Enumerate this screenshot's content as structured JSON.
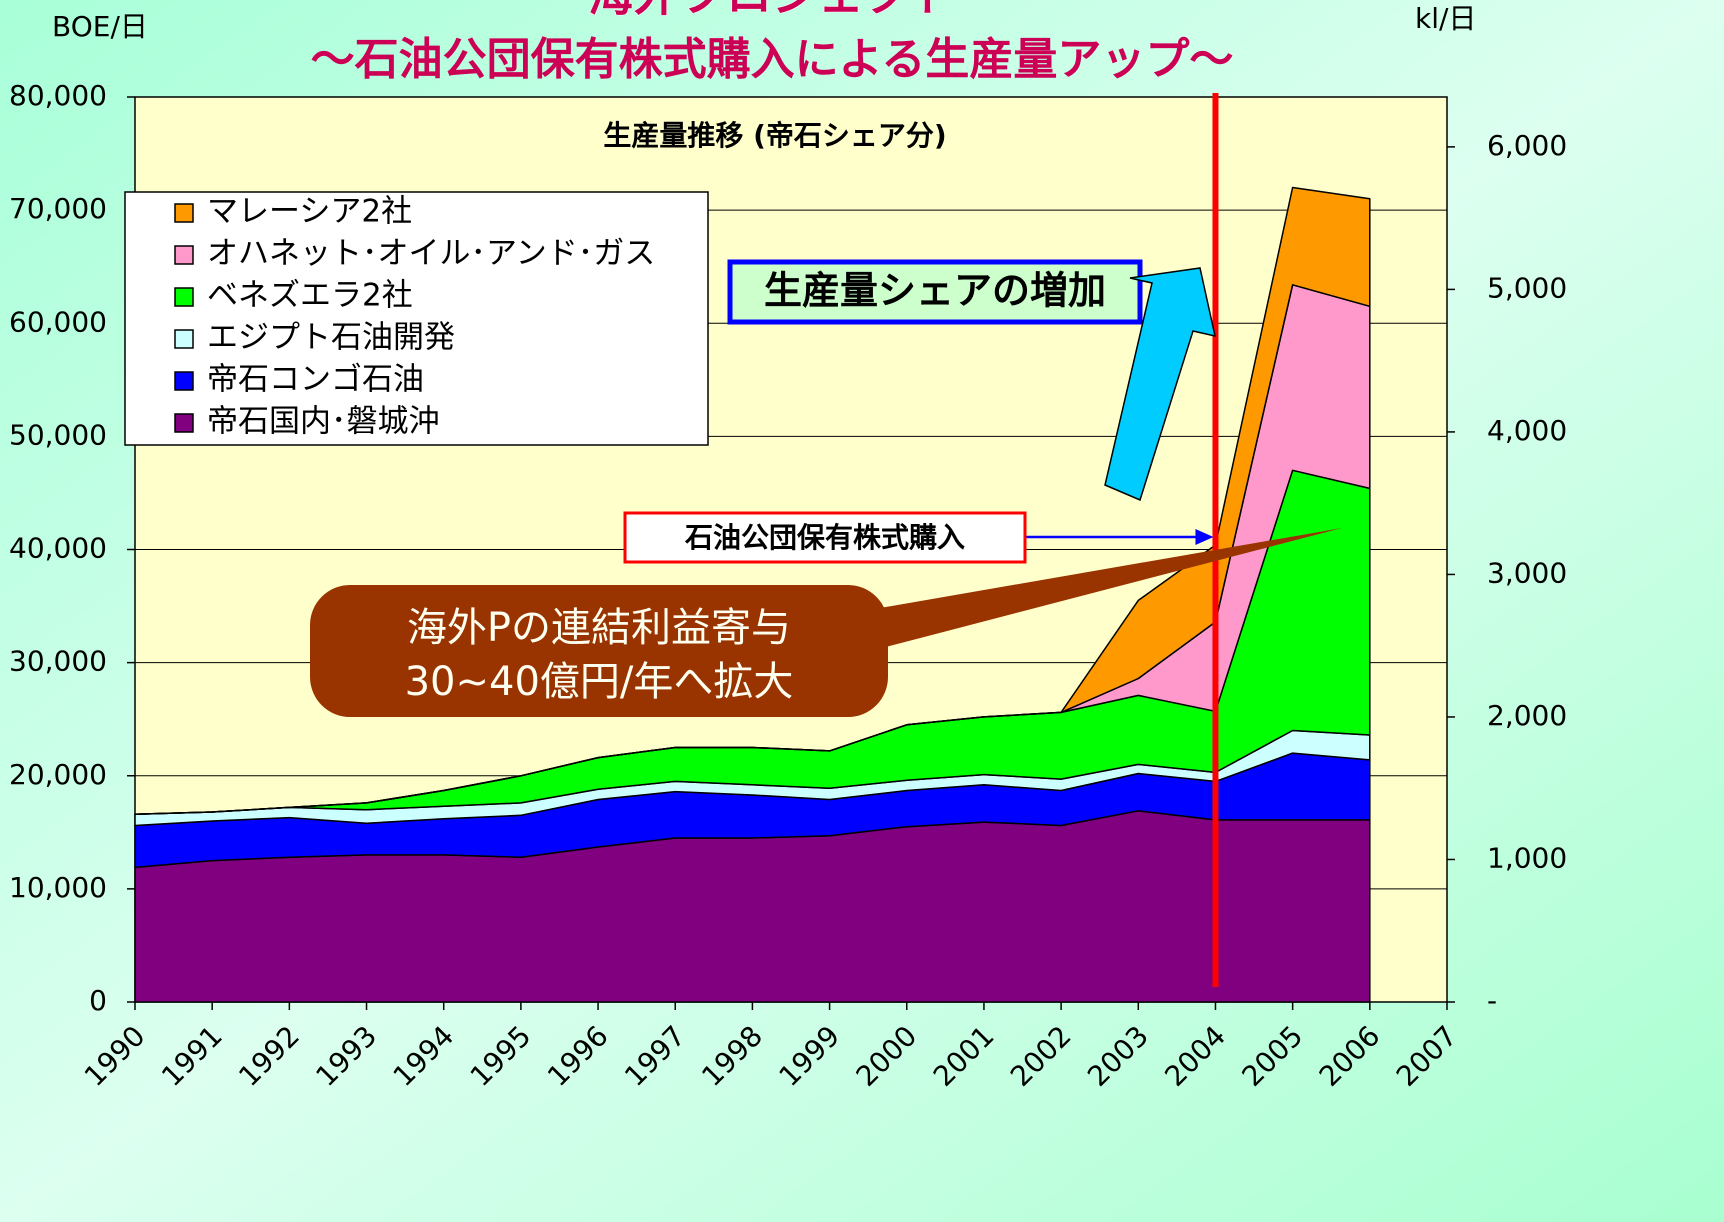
{
  "chart_data": {
    "type": "stacked_area",
    "title": "海外プロジェクト",
    "subtitle": "～石油公団保有株式購入による生産量アップ～",
    "plot_title": "生産量推移 (帝石シェア分)",
    "y_label": "BOE/日",
    "y2_label": "kl/日",
    "x": [
      1990,
      1991,
      1992,
      1993,
      1994,
      1995,
      1996,
      1997,
      1998,
      1999,
      2000,
      2001,
      2002,
      2003,
      2004,
      2005,
      2006,
      2007
    ],
    "xlim": [
      1990,
      2007
    ],
    "xticks": [
      1990,
      1991,
      1992,
      1993,
      1994,
      1995,
      1996,
      1997,
      1998,
      1999,
      2000,
      2001,
      2002,
      2003,
      2004,
      2005,
      2006,
      2007
    ],
    "ylim": [
      0,
      80000
    ],
    "yticks": [
      {
        "value": 0,
        "label": "0"
      },
      {
        "value": 10000,
        "label": "10,000"
      },
      {
        "value": 20000,
        "label": "20,000"
      },
      {
        "value": 30000,
        "label": "30,000"
      },
      {
        "value": 40000,
        "label": "40,000"
      },
      {
        "value": 50000,
        "label": "50,000"
      },
      {
        "value": 60000,
        "label": "60,000"
      },
      {
        "value": 70000,
        "label": "70,000"
      },
      {
        "value": 80000,
        "label": "80,000"
      }
    ],
    "y2lim": [
      0,
      6350
    ],
    "y2ticks": [
      {
        "value": 0,
        "label": "-"
      },
      {
        "value": 1000,
        "label": "1,000"
      },
      {
        "value": 2000,
        "label": "2,000"
      },
      {
        "value": 3000,
        "label": "3,000"
      },
      {
        "value": 4000,
        "label": "4,000"
      },
      {
        "value": 5000,
        "label": "5,000"
      },
      {
        "value": 6000,
        "label": "6,000"
      }
    ],
    "grid": true,
    "legend": "upper left",
    "series": [
      {
        "name": "帝石国内･磐城沖",
        "color": "#800080",
        "values": [
          11900,
          12500,
          12800,
          13000,
          13000,
          12800,
          13700,
          14500,
          14500,
          14700,
          15500,
          15900,
          15600,
          16900,
          16100,
          16100,
          16100,
          null
        ]
      },
      {
        "name": "帝石コンゴ石油",
        "color": "#0000ff",
        "values": [
          3700,
          3500,
          3500,
          2800,
          3200,
          3700,
          4200,
          4100,
          3800,
          3200,
          3200,
          3300,
          3100,
          3300,
          3400,
          5900,
          5300,
          null
        ]
      },
      {
        "name": "エジプト石油開発",
        "color": "#ccffff",
        "values": [
          1000,
          800,
          900,
          1200,
          1100,
          1100,
          900,
          900,
          900,
          1000,
          900,
          900,
          1000,
          800,
          800,
          2000,
          2200,
          null
        ]
      },
      {
        "name": "ベネズエラ2社",
        "color": "#00ff00",
        "values": [
          0,
          0,
          0,
          600,
          1400,
          2400,
          2800,
          3000,
          3300,
          3300,
          4900,
          5100,
          5900,
          6100,
          5400,
          23000,
          21800,
          null
        ]
      },
      {
        "name": "オハネット･オイル･アンド･ガス",
        "color": "#ff99cc",
        "values": [
          0,
          0,
          0,
          0,
          0,
          0,
          0,
          0,
          0,
          0,
          0,
          0,
          0,
          1500,
          7900,
          16400,
          16100,
          null
        ]
      },
      {
        "name": "マレーシア2社",
        "color": "#ff9900",
        "values": [
          0,
          0,
          0,
          0,
          0,
          0,
          0,
          0,
          0,
          0,
          0,
          0,
          0,
          6900,
          6800,
          8600,
          9500,
          null
        ]
      }
    ],
    "reference_line": {
      "x": 2004,
      "color": "#ff0000"
    },
    "annotations": [
      {
        "text": "生産量シェアの増加"
      },
      {
        "text": "石油公団保有株式購入"
      },
      {
        "text": "海外Pの連結利益寄与"
      },
      {
        "text": "30~40億円/年へ拡大"
      }
    ]
  }
}
